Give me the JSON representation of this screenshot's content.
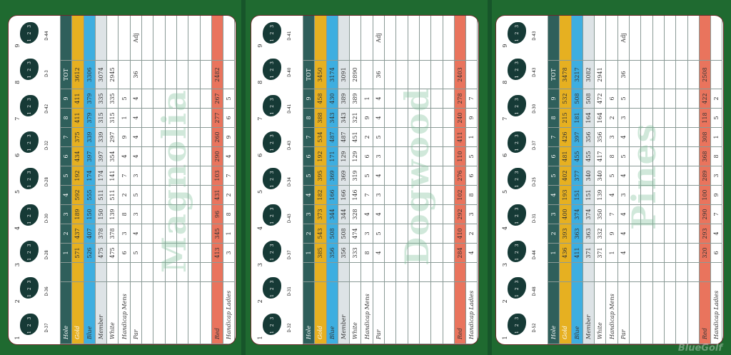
{
  "logo": "BlueGolf",
  "adj_label": "Adj",
  "colors": {
    "hole": "#2f5f5b",
    "gold": "#e6b021",
    "blue": "#3eaee0",
    "member": "#dde3e6",
    "red": "#e9745d",
    "background": "#1f6a30"
  },
  "courses": [
    {
      "name": "Magnolia",
      "diagrams": [
        {
          "hole": "1",
          "depth": "D-37"
        },
        {
          "hole": "2",
          "depth": "D-36"
        },
        {
          "hole": "3",
          "depth": "D-28"
        },
        {
          "hole": "4",
          "depth": "D-30"
        },
        {
          "hole": "5",
          "depth": "D-28"
        },
        {
          "hole": "6",
          "depth": "D-32"
        },
        {
          "hole": "7",
          "depth": "D-42"
        },
        {
          "hole": "8",
          "depth": "D-3"
        },
        {
          "hole": "9",
          "depth": "D-44"
        }
      ],
      "rows": [
        {
          "key": "hole",
          "label": "Hole",
          "values": [
            "1",
            "2",
            "3",
            "4",
            "5",
            "6",
            "7",
            "8",
            "9"
          ],
          "total": "TOT"
        },
        {
          "key": "gold",
          "label": "Gold",
          "values": [
            "571",
            "437",
            "189",
            "592",
            "192",
            "434",
            "375",
            "411",
            "411"
          ],
          "total": "3612"
        },
        {
          "key": "blue",
          "label": "Blue",
          "values": [
            "526",
            "407",
            "150",
            "555",
            "174",
            "397",
            "339",
            "379",
            "379"
          ],
          "total": "3306"
        },
        {
          "key": "member",
          "label": "Member",
          "values": [
            "475",
            "378",
            "150",
            "511",
            "174",
            "397",
            "339",
            "315",
            "335"
          ],
          "total": "3074"
        },
        {
          "key": "white",
          "label": "White",
          "values": [
            "475",
            "378",
            "139",
            "511",
            "141",
            "354",
            "297",
            "315",
            "335"
          ],
          "total": "2945"
        },
        {
          "key": "hcp-mens",
          "label": "Handicap Mens",
          "values": [
            "6",
            "3",
            "8",
            "2",
            "7",
            "4",
            "9",
            "1",
            "5"
          ],
          "total": ""
        },
        {
          "key": "par",
          "label": "Par",
          "values": [
            "5",
            "4",
            "3",
            "5",
            "3",
            "4",
            "4",
            "4",
            "4"
          ],
          "total": "36"
        },
        {
          "key": "red",
          "label": "Red",
          "values": [
            "413",
            "345",
            "96",
            "431",
            "103",
            "290",
            "260",
            "277",
            "267"
          ],
          "total": "2482"
        },
        {
          "key": "hcp-ladies",
          "label": "Handicap Ladies",
          "values": [
            "3",
            "1",
            "8",
            "2",
            "7",
            "4",
            "9",
            "6",
            "5"
          ],
          "total": ""
        }
      ]
    },
    {
      "name": "Dogwood",
      "diagrams": [
        {
          "hole": "1",
          "depth": "D-32"
        },
        {
          "hole": "2",
          "depth": "D-31"
        },
        {
          "hole": "3",
          "depth": "D-37"
        },
        {
          "hole": "4",
          "depth": "D-43"
        },
        {
          "hole": "5",
          "depth": "D-34"
        },
        {
          "hole": "6",
          "depth": "D-43"
        },
        {
          "hole": "7",
          "depth": "D-41"
        },
        {
          "hole": "8",
          "depth": "D-40"
        },
        {
          "hole": "9",
          "depth": "D-41"
        }
      ],
      "rows": [
        {
          "key": "hole",
          "label": "Hole",
          "values": [
            "1",
            "2",
            "3",
            "4",
            "5",
            "6",
            "7",
            "8",
            "9"
          ],
          "total": "TOT"
        },
        {
          "key": "gold",
          "label": "Gold",
          "values": [
            "385",
            "543",
            "373",
            "182",
            "395",
            "192",
            "534",
            "388",
            "458"
          ],
          "total": "3450"
        },
        {
          "key": "blue",
          "label": "Blue",
          "values": [
            "356",
            "508",
            "344",
            "166",
            "369",
            "171",
            "487",
            "343",
            "430"
          ],
          "total": "3174"
        },
        {
          "key": "member",
          "label": "Member",
          "values": [
            "356",
            "508",
            "344",
            "166",
            "369",
            "129",
            "487",
            "343",
            "389"
          ],
          "total": "3091"
        },
        {
          "key": "white",
          "label": "White",
          "values": [
            "333",
            "474",
            "328",
            "146",
            "319",
            "129",
            "451",
            "321",
            "389"
          ],
          "total": "2890"
        },
        {
          "key": "hcp-mens",
          "label": "Handicap Mens",
          "values": [
            "8",
            "3",
            "4",
            "7",
            "5",
            "6",
            "2",
            "9",
            "1"
          ],
          "total": ""
        },
        {
          "key": "par",
          "label": "Par",
          "values": [
            "4",
            "5",
            "4",
            "3",
            "4",
            "3",
            "5",
            "4",
            "4"
          ],
          "total": "36"
        },
        {
          "key": "red",
          "label": "Red",
          "values": [
            "284",
            "410",
            "292",
            "102",
            "276",
            "110",
            "411",
            "240",
            "278"
          ],
          "total": "2403"
        },
        {
          "key": "hcp-ladies",
          "label": "Handicap Ladies",
          "values": [
            "4",
            "2",
            "3",
            "8",
            "6",
            "5",
            "1",
            "9",
            "7"
          ],
          "total": ""
        }
      ]
    },
    {
      "name": "Pines",
      "diagrams": [
        {
          "hole": "1",
          "depth": "D-52"
        },
        {
          "hole": "2",
          "depth": "D-48"
        },
        {
          "hole": "3",
          "depth": "D-44"
        },
        {
          "hole": "4",
          "depth": "D-31"
        },
        {
          "hole": "5",
          "depth": "D-25"
        },
        {
          "hole": "6",
          "depth": "D-37"
        },
        {
          "hole": "7",
          "depth": "D-30"
        },
        {
          "hole": "8",
          "depth": "D-43"
        },
        {
          "hole": "9",
          "depth": "D-43"
        }
      ],
      "rows": [
        {
          "key": "hole",
          "label": "Hole",
          "values": [
            "1",
            "2",
            "3",
            "4",
            "5",
            "6",
            "7",
            "8",
            "9"
          ],
          "total": "TOT"
        },
        {
          "key": "gold",
          "label": "Gold",
          "values": [
            "436",
            "393",
            "400",
            "193",
            "402",
            "481",
            "426",
            "215",
            "532"
          ],
          "total": "3478"
        },
        {
          "key": "blue",
          "label": "Blue",
          "values": [
            "411",
            "363",
            "374",
            "151",
            "377",
            "455",
            "397",
            "181",
            "508"
          ],
          "total": "3217"
        },
        {
          "key": "member",
          "label": "Member",
          "values": [
            "371",
            "363",
            "374",
            "151",
            "340",
            "455",
            "356",
            "164",
            "508"
          ],
          "total": "3082"
        },
        {
          "key": "white",
          "label": "White",
          "values": [
            "371",
            "332",
            "350",
            "139",
            "340",
            "417",
            "356",
            "164",
            "472"
          ],
          "total": "2941"
        },
        {
          "key": "hcp-mens",
          "label": "Handicap Mens",
          "values": [
            "1",
            "9",
            "7",
            "4",
            "5",
            "8",
            "3",
            "2",
            "6"
          ],
          "total": ""
        },
        {
          "key": "par",
          "label": "Par",
          "values": [
            "4",
            "4",
            "4",
            "3",
            "4",
            "5",
            "4",
            "3",
            "5"
          ],
          "total": "36"
        },
        {
          "key": "red",
          "label": "Red",
          "values": [
            "320",
            "293",
            "290",
            "100",
            "289",
            "368",
            "308",
            "118",
            "422"
          ],
          "total": "2508"
        },
        {
          "key": "hcp-ladies",
          "label": "Handicap Ladies",
          "values": [
            "6",
            "4",
            "7",
            "9",
            "3",
            "8",
            "1",
            "5",
            "2"
          ],
          "total": ""
        }
      ]
    }
  ]
}
